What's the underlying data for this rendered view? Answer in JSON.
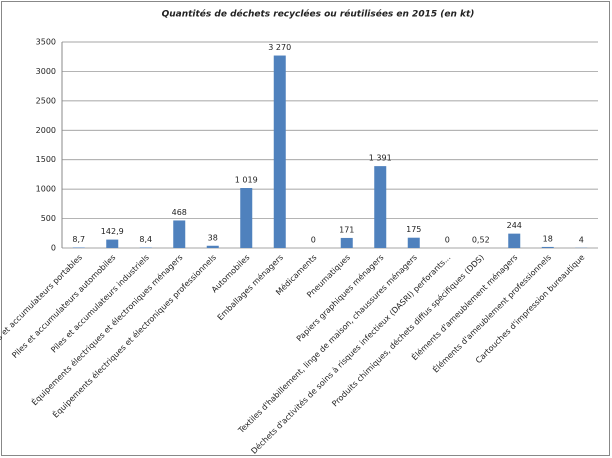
{
  "chart_data": {
    "type": "bar",
    "title": "Quantités de déchets recyclées ou réutilisées en 2015 (en kt)",
    "categories": [
      "Piles et accumulateurs portables",
      "Piles et accumulateurs automobiles",
      "Piles et accumulateurs industriels",
      "Équipements électriques et électroniques ménagers",
      "Équipements électriques et électroniques professionnels",
      "Automobiles",
      "Emballages ménagers",
      "Médicaments",
      "Pneumatiques",
      "Papiers graphiques ménagers",
      "Textiles d'habillement, linge de maison, chaussures ménagers",
      "Déchets d'activités de soins à risques infectieux (DASRI) perforants...",
      "Produits chimiques, déchets diffus spécifiques (DDS)",
      "Éléments d'ameublement ménagers",
      "Éléments d'ameublement professionnels",
      "Cartouches d'impression bureautique"
    ],
    "values": [
      8.7,
      142.9,
      8.4,
      468,
      38,
      1019,
      3270,
      0,
      171,
      1391,
      175,
      0,
      0.52,
      244,
      18,
      4
    ],
    "value_labels": [
      "8,7",
      "142,9",
      "8,4",
      "468",
      "38",
      "1 019",
      "3 270",
      "0",
      "171",
      "1 391",
      "175",
      "0",
      "0,52",
      "244",
      "18",
      "4"
    ],
    "color": "#4f81bd",
    "ylim": [
      0,
      3500
    ],
    "yticks": [
      0,
      500,
      1000,
      1500,
      2000,
      2500,
      3000,
      3500
    ],
    "grid": true
  }
}
